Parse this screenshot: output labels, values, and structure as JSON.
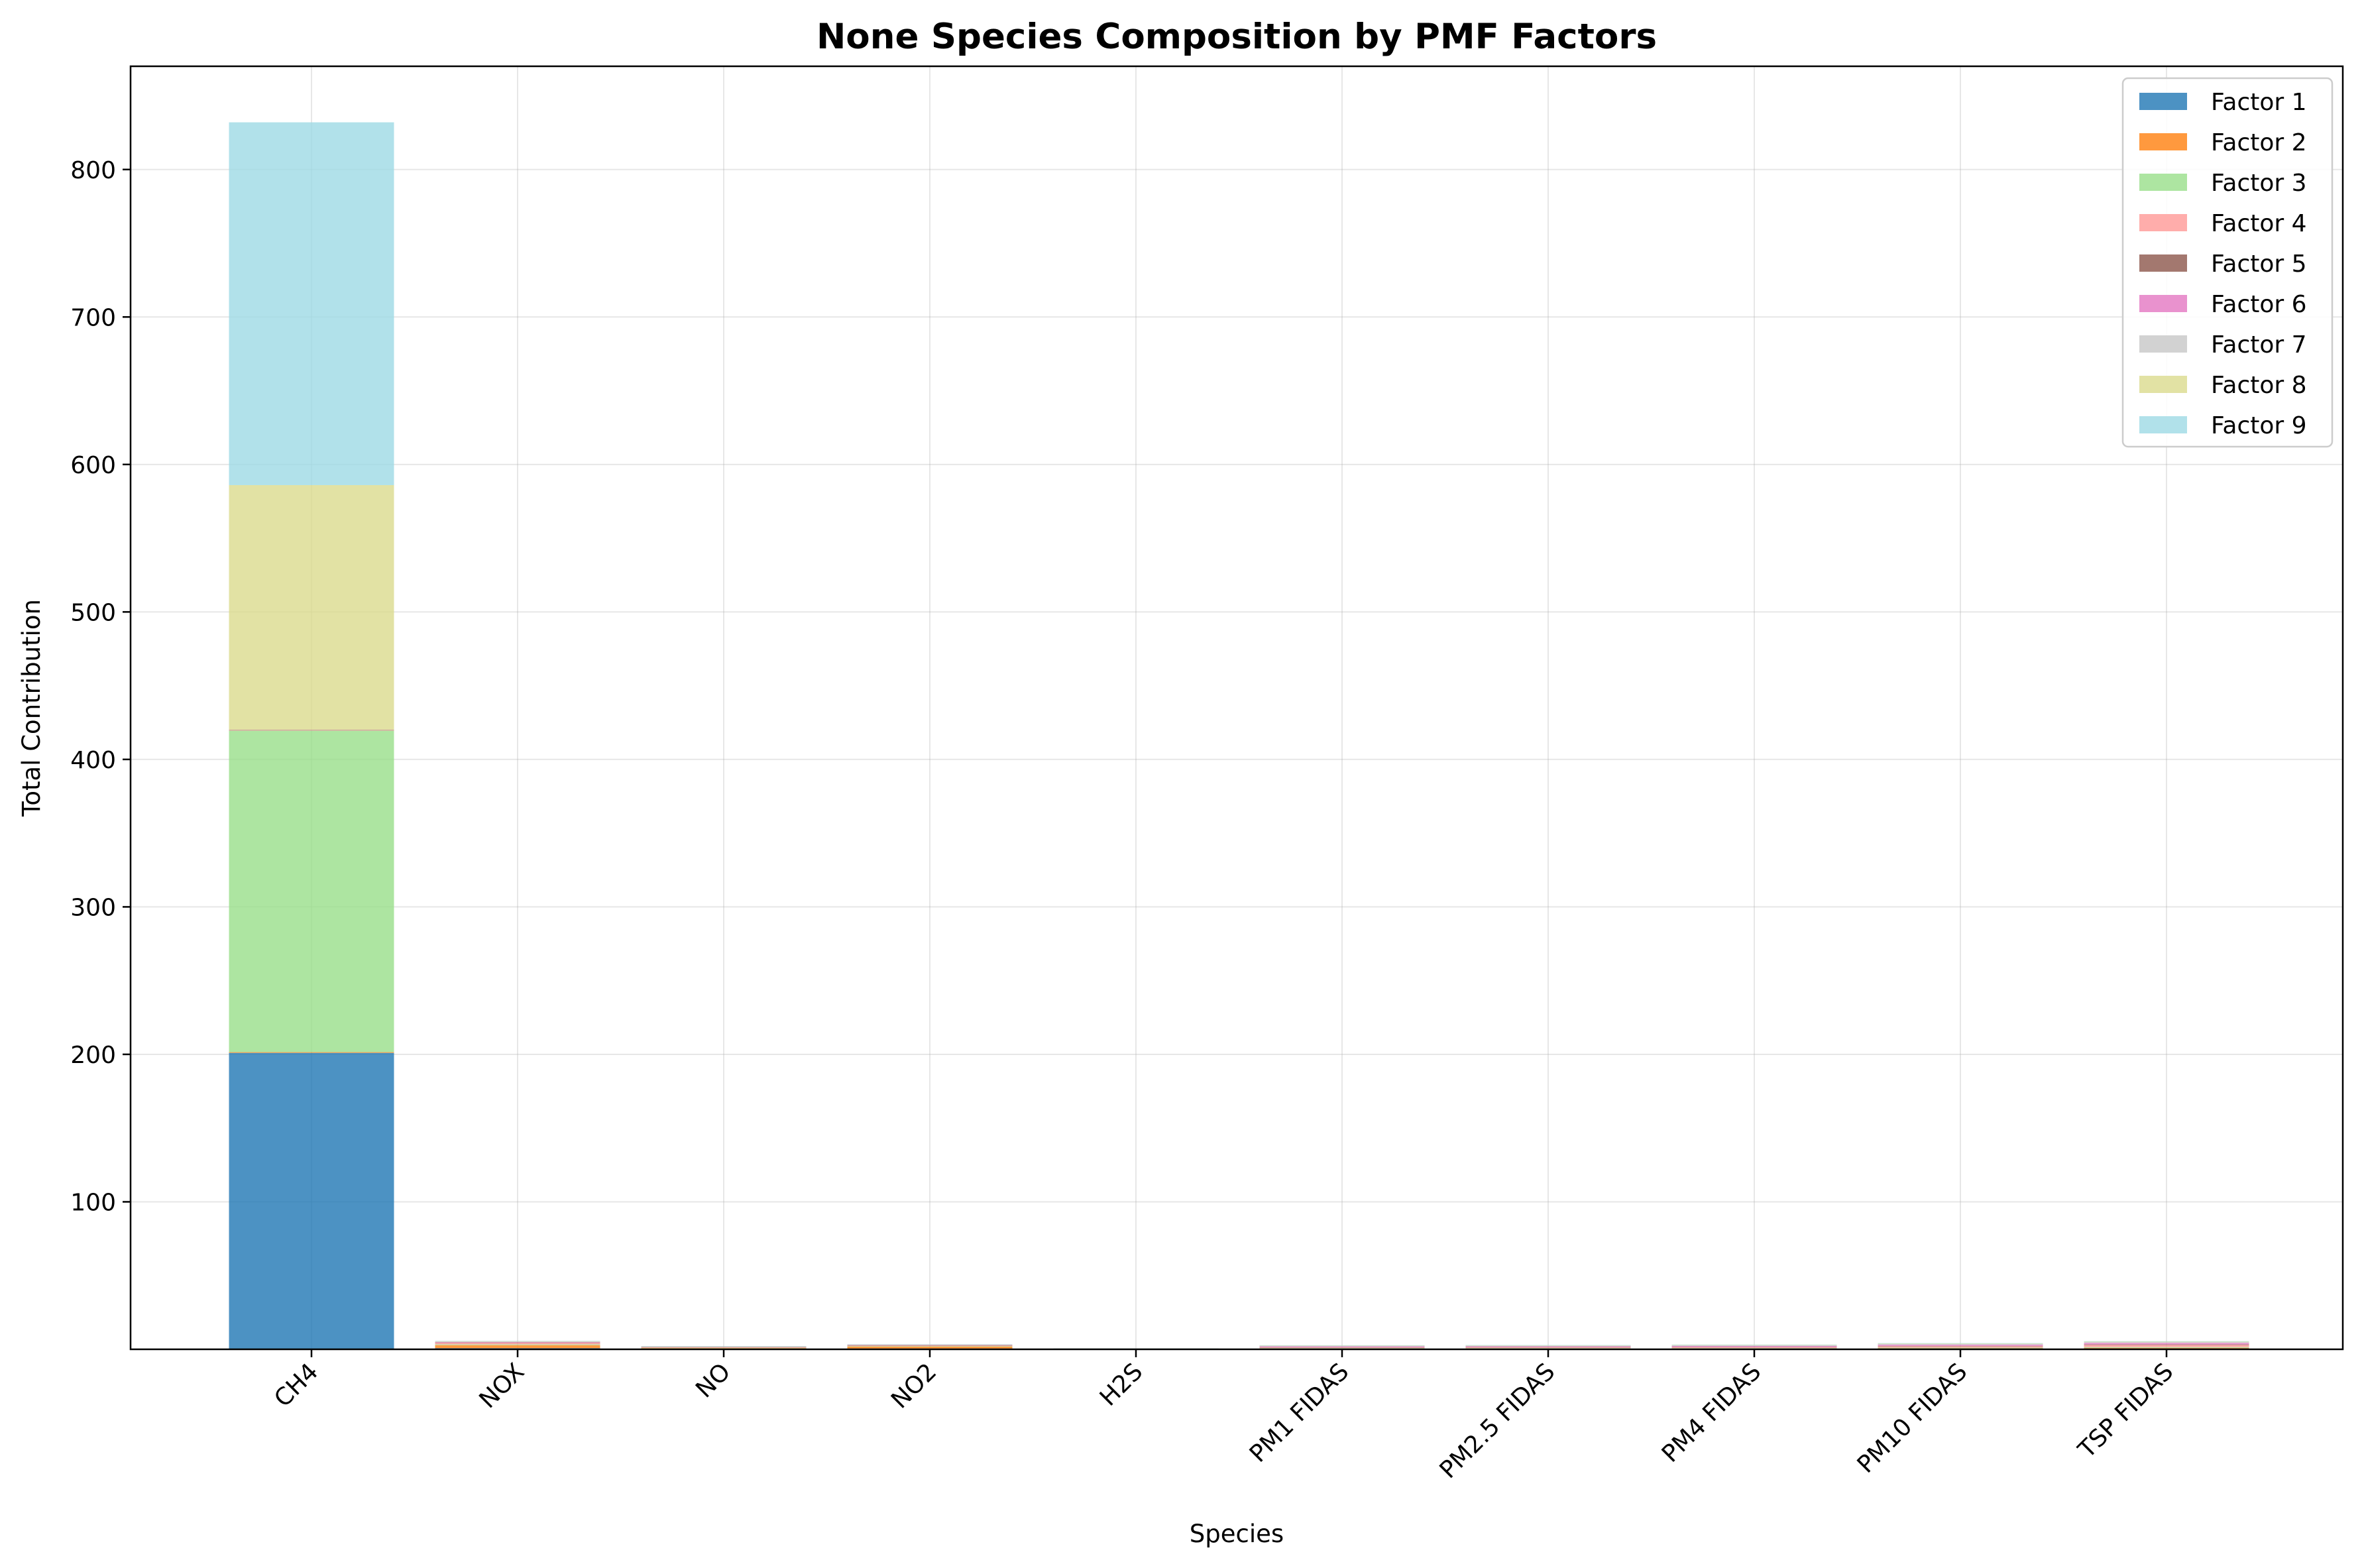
{
  "chart_data": {
    "type": "bar",
    "stacked": true,
    "title": "None Species Composition by PMF Factors",
    "xlabel": "Species",
    "ylabel": "Total Contribution",
    "ylim": [
      0,
      870
    ],
    "yticks": [
      100,
      200,
      300,
      400,
      500,
      600,
      700,
      800
    ],
    "grid": true,
    "legend_position": "top-right",
    "categories": [
      "CH4",
      "NOX",
      "NO",
      "NO2",
      "H2S",
      "PM1 FIDAS",
      "PM2.5 FIDAS",
      "PM4 FIDAS",
      "PM10 FIDAS",
      "TSP FIDAS"
    ],
    "series": [
      {
        "name": "Factor 1",
        "color": "#1f77b4",
        "values": [
          201,
          0.8,
          0.3,
          0.5,
          0.05,
          0.3,
          0.3,
          0.3,
          0.4,
          0.6
        ]
      },
      {
        "name": "Factor 2",
        "color": "#ff7f0e",
        "values": [
          0.5,
          2.0,
          0.5,
          1.3,
          0.05,
          0.2,
          0.2,
          0.2,
          0.3,
          0.4
        ]
      },
      {
        "name": "Factor 3",
        "color": "#98df8a",
        "values": [
          218,
          0.5,
          0.2,
          0.3,
          0.05,
          0.3,
          0.3,
          0.3,
          0.4,
          0.5
        ]
      },
      {
        "name": "Factor 4",
        "color": "#ff9896",
        "values": [
          0.2,
          1.0,
          0.4,
          0.4,
          0.02,
          0.4,
          0.5,
          0.6,
          0.9,
          1.4
        ]
      },
      {
        "name": "Factor 5",
        "color": "#8c564b",
        "values": [
          0.1,
          0.3,
          0.1,
          0.2,
          0.02,
          0.2,
          0.2,
          0.2,
          0.3,
          0.4
        ]
      },
      {
        "name": "Factor 6",
        "color": "#e377c2",
        "values": [
          0.1,
          0.4,
          0.1,
          0.2,
          0.02,
          0.6,
          0.6,
          0.7,
          0.8,
          1.0
        ]
      },
      {
        "name": "Factor 7",
        "color": "#c7c7c7",
        "values": [
          0.1,
          0.2,
          0.1,
          0.1,
          0.02,
          0.3,
          0.3,
          0.4,
          0.5,
          0.6
        ]
      },
      {
        "name": "Factor 8",
        "color": "#dbdb8d",
        "values": [
          166,
          0.2,
          0.1,
          0.1,
          0.02,
          0.2,
          0.2,
          0.2,
          0.3,
          0.3
        ]
      },
      {
        "name": "Factor 9",
        "color": "#9edae5",
        "values": [
          246,
          0.2,
          0.1,
          0.1,
          0.02,
          0.2,
          0.2,
          0.2,
          0.3,
          0.3
        ]
      }
    ]
  }
}
